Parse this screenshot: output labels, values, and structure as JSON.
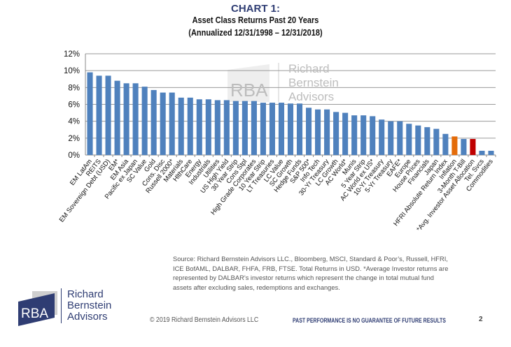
{
  "chart_data": {
    "type": "bar",
    "title": "CHART 1:",
    "subtitle": "Asset Class Returns Past 20 Years",
    "subtitle2": "(Annualized 12/31/1998 – 12/31/2018)",
    "xlabel": "",
    "ylabel": "",
    "ylim": [
      0,
      12
    ],
    "yticks": [
      "0%",
      "2%",
      "4%",
      "6%",
      "8%",
      "10%",
      "12%"
    ],
    "grid": true,
    "categories": [
      "EM LatAm",
      "REITS",
      "EM Sovereign Debt (USD)",
      "EM*",
      "EM Asia",
      "Pacific ex Japan",
      "SC Value",
      "Gold",
      "Cons. Disc",
      "Russell 2000*",
      "Materials",
      "HlthCare",
      "Energy",
      "Industrials",
      "Utilities",
      "US High Yield",
      "30 Year Strip",
      "Cons Stpl",
      "High Grade Corporates",
      "10 Year Strip",
      "LT Treasuries",
      "LC Value",
      "SC Growth",
      "Hedge Funds",
      "S&P 500*",
      "Info Tech",
      "30-Yr Treasury",
      "LC Growth",
      "AC World*",
      "Munis",
      "5 Year Strip",
      "AC World ex US*",
      "10-Yr Treasury",
      "5-Yr Treasury",
      "EAFE*",
      "Europe",
      "House Prices",
      "Financials",
      "Japan",
      "HFRI Absolute Return Index",
      "Inflation",
      "3-Month T-Bill",
      "*Avg. Investor Asset Allocation",
      "Tel. Svcs",
      "Commodities"
    ],
    "values": [
      9.8,
      9.4,
      9.4,
      8.8,
      8.5,
      8.5,
      8.1,
      7.7,
      7.4,
      7.4,
      6.8,
      6.8,
      6.6,
      6.6,
      6.5,
      6.5,
      6.4,
      6.4,
      6.4,
      6.2,
      6.2,
      6.2,
      6.1,
      6.1,
      5.6,
      5.4,
      5.4,
      5.1,
      5.0,
      4.7,
      4.7,
      4.6,
      4.2,
      4.0,
      4.0,
      3.7,
      3.5,
      3.3,
      3.1,
      2.5,
      2.2,
      1.9,
      1.9,
      0.5,
      0.5
    ],
    "colors": {
      "default": "#4f81bd",
      "Inflation": "#e46c0a",
      "*Avg. Investor Asset Allocation": "#c00000"
    }
  },
  "watermark": {
    "letters": "RBA",
    "line1": "Richard",
    "line2": "Bernstein",
    "line3": "Advisors"
  },
  "source_note": "Source: Richard Bernstein Advisors LLC., Bloomberg, MSCI, Standard & Poor’s, Russell, HFRI, ICE BofAML, DALBAR, FHFA, FRB, FTSE.  Total Returns in USD. *Average Investor returns are represented by DALBAR’s investor returns which represent the change in total mutual fund assets after excluding sales, redemptions and exchanges.",
  "logo": {
    "letters": "RBA",
    "line1": "Richard",
    "line2": "Bernstein",
    "line3": "Advisors"
  },
  "footer": {
    "copyright": "© 2019   Richard Bernstein Advisors LLC",
    "disclaimer": "PAST PERFORMANCE IS NO GUARANTEE OF FUTURE RESULTS",
    "page": "2"
  }
}
